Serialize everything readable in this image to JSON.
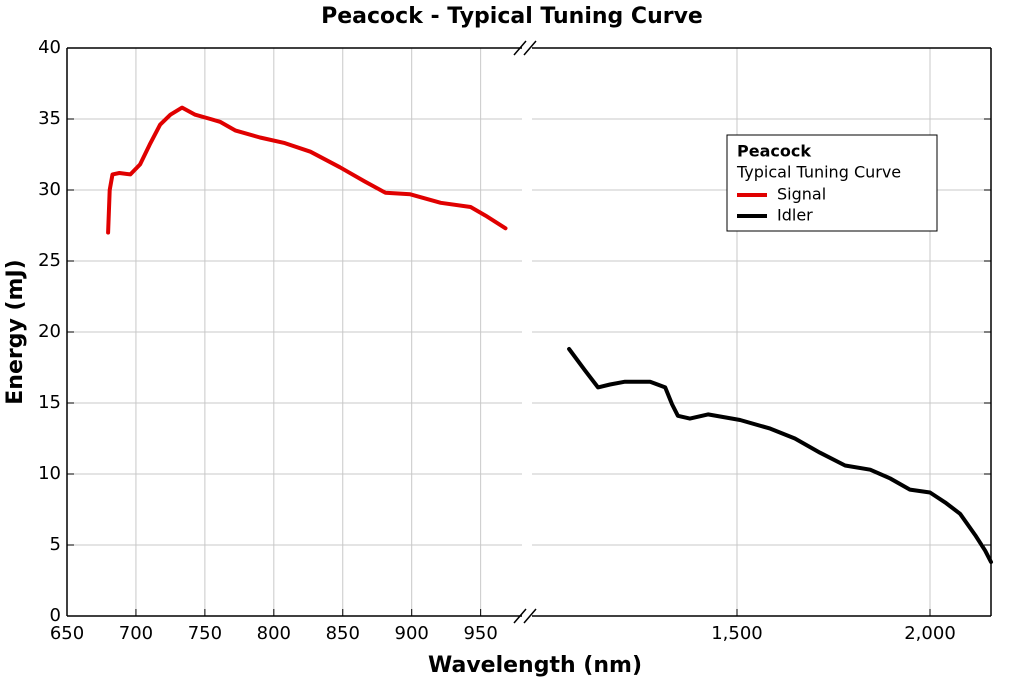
{
  "chart_data": {
    "type": "line",
    "title": "Peacock - Typical Tuning Curve",
    "x_label": "Wavelength (nm)",
    "y_label": "Energy (mJ)",
    "legend_title": "Peacock",
    "legend_subtitle": "Typical Tuning Curve",
    "legend": "center right",
    "grid": true,
    "xlim": [
      650,
      980
    ],
    "xticks": [
      650,
      700,
      750,
      800,
      850,
      900,
      950
    ],
    "x2lim": [
      969,
      2158
    ],
    "x2ticks": [
      {
        "value": 1500,
        "label": "1,500"
      },
      {
        "value": 2000,
        "label": "2,000"
      }
    ],
    "ylim": [
      0,
      40
    ],
    "yticks": [
      0,
      5,
      10,
      15,
      20,
      25,
      30,
      35,
      40
    ],
    "series": [
      {
        "name": "Signal",
        "color": "#e00000",
        "axis": "x",
        "x": [
          679.8,
          681,
          683,
          688,
          696,
          703,
          710,
          717.5,
          725,
          733.5,
          743,
          754,
          761,
          772,
          790,
          808,
          826.5,
          848,
          866,
          881,
          899,
          921,
          942.7,
          953.5,
          968
        ],
        "values": [
          27.0,
          30.0,
          31.1,
          31.2,
          31.1,
          31.8,
          33.2,
          34.6,
          35.3,
          35.8,
          35.3,
          35.0,
          34.8,
          34.2,
          33.7,
          33.3,
          32.7,
          31.6,
          30.6,
          29.8,
          29.7,
          29.1,
          28.8,
          28.2,
          27.3
        ]
      },
      {
        "name": "Idler",
        "color": "#000000",
        "axis": "x2",
        "x": [
          1065,
          1106,
          1140,
          1171,
          1210,
          1275,
          1314,
          1332,
          1347,
          1378,
          1425,
          1508,
          1586,
          1650,
          1715,
          1780,
          1845,
          1896,
          1948,
          2000,
          2039,
          2078,
          2117,
          2143,
          2158
        ],
        "values": [
          18.8,
          17.3,
          16.1,
          16.3,
          16.5,
          16.5,
          16.1,
          14.9,
          14.1,
          13.9,
          14.2,
          13.8,
          13.2,
          12.5,
          11.5,
          10.6,
          10.3,
          9.7,
          8.9,
          8.7,
          8.0,
          7.2,
          5.7,
          4.6,
          3.8
        ]
      }
    ]
  }
}
